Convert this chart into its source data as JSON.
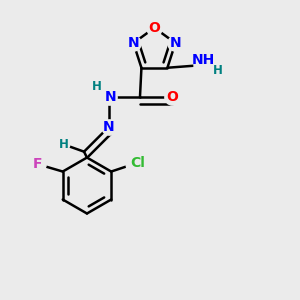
{
  "bg_color": "#ebebeb",
  "bond_color": "#000000",
  "bond_width": 1.8,
  "colors": {
    "O": "#ff0000",
    "N": "#0000ff",
    "H": "#008080",
    "F": "#cc44bb",
    "Cl": "#33bb33",
    "C": "#000000"
  },
  "font_size": 10,
  "font_size_small": 8.5
}
